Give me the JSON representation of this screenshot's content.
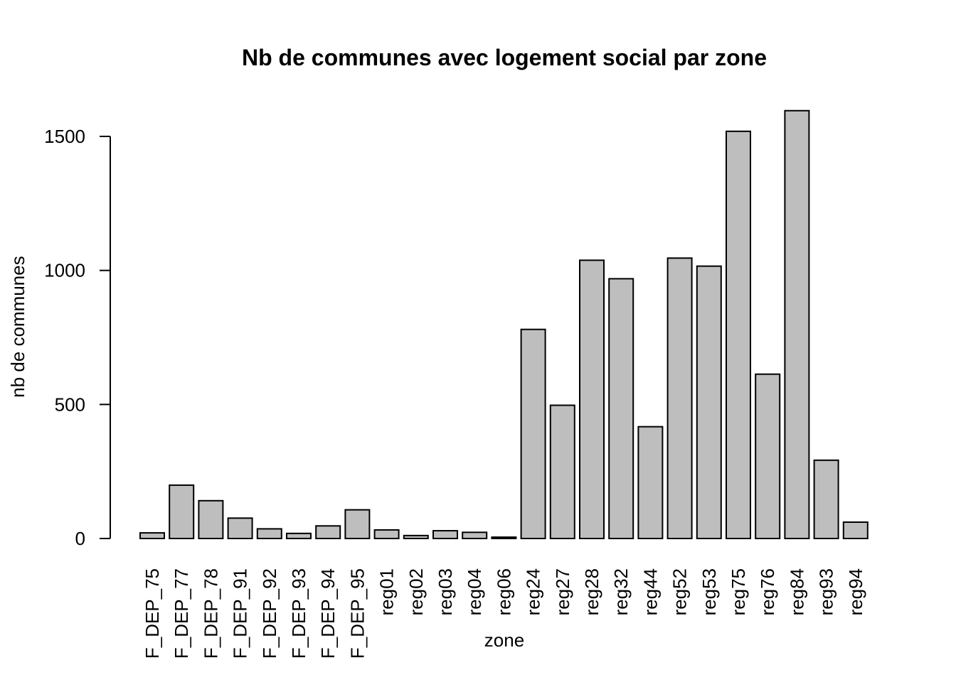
{
  "chart_data": {
    "type": "bar",
    "title": "Nb de communes avec logement social par zone",
    "xlabel": "zone",
    "ylabel": "nb de communes",
    "ylim": [
      0,
      1600
    ],
    "yticks": [
      0,
      500,
      1000,
      1500
    ],
    "categories": [
      "F_DEP_75",
      "F_DEP_77",
      "F_DEP_78",
      "F_DEP_91",
      "F_DEP_92",
      "F_DEP_93",
      "F_DEP_94",
      "F_DEP_95",
      "reg01",
      "reg02",
      "reg03",
      "reg04",
      "reg06",
      "reg24",
      "reg27",
      "reg28",
      "reg32",
      "reg44",
      "reg52",
      "reg53",
      "reg75",
      "reg76",
      "reg84",
      "reg93",
      "reg94"
    ],
    "values": [
      21,
      199,
      141,
      76,
      36,
      19,
      47,
      107,
      32,
      11,
      29,
      23,
      5,
      780,
      497,
      1038,
      969,
      417,
      1046,
      1016,
      1519,
      613,
      1596,
      292,
      61
    ],
    "colors": {
      "bar_fill": "#bebebe",
      "bar_stroke": "#000000"
    },
    "grid": false,
    "legend": "none"
  }
}
